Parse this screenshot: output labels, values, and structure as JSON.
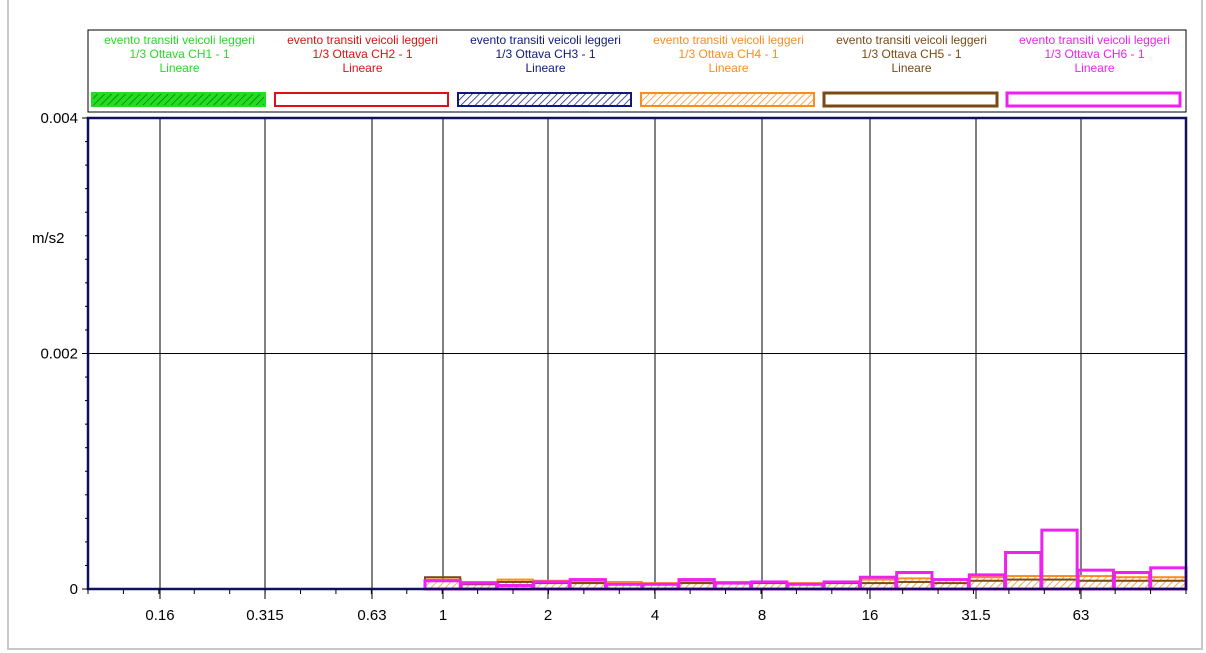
{
  "chart_data": {
    "type": "bar",
    "ylabel": "m/s2",
    "ylim": [
      0,
      0.004
    ],
    "y_ticks": [
      0,
      0.002,
      0.004
    ],
    "y_tick_labels": [
      "0",
      "0.002",
      "0.004"
    ],
    "x_scale": "log",
    "x_tick_labels": [
      "0.16",
      "0.315",
      "0.63",
      "1",
      "2",
      "4",
      "8",
      "16",
      "31.5",
      "63"
    ],
    "grid": true,
    "legend_placement": "top",
    "categories": [
      "1",
      "1.25",
      "1.6",
      "2",
      "2.5",
      "3.15",
      "4",
      "5",
      "6.3",
      "8",
      "10",
      "12.5",
      "16",
      "20",
      "25",
      "31.5",
      "40",
      "50",
      "63",
      "80",
      "100"
    ],
    "series": [
      {
        "name": "evento transiti veicoli leggeri",
        "channel": "1/3 Ottava CH1 - 1",
        "weighting": "Lineare",
        "color": "#22dd22",
        "style": "hatch-green",
        "values": [
          2e-05,
          2e-05,
          2e-05,
          2e-05,
          2e-05,
          2e-05,
          2e-05,
          2e-05,
          2e-05,
          2e-05,
          2e-05,
          2e-05,
          2e-05,
          2e-05,
          2e-05,
          3e-05,
          3e-05,
          3e-05,
          3e-05,
          3e-05,
          3e-05
        ]
      },
      {
        "name": "evento transiti veicoli leggeri",
        "channel": "1/3 Ottava CH2 - 1",
        "weighting": "Lineare",
        "color": "#dd1111",
        "style": "outline",
        "values": [
          4e-05,
          4e-05,
          4e-05,
          4e-05,
          4e-05,
          4e-05,
          3e-05,
          3e-05,
          3e-05,
          3e-05,
          3e-05,
          4e-05,
          4e-05,
          5e-05,
          5e-05,
          6e-05,
          7e-05,
          7e-05,
          7e-05,
          6e-05,
          6e-05
        ]
      },
      {
        "name": "evento transiti veicoli leggeri",
        "channel": "1/3 Ottava CH3 - 1",
        "weighting": "Lineare",
        "color": "#101880",
        "style": "hatch-navy",
        "values": [
          6e-05,
          5e-05,
          6e-05,
          6e-05,
          5e-05,
          5e-05,
          4e-05,
          4e-05,
          4e-05,
          4e-05,
          4e-05,
          5e-05,
          6e-05,
          7e-05,
          6e-05,
          8e-05,
          9e-05,
          9e-05,
          9e-05,
          8e-05,
          8e-05
        ]
      },
      {
        "name": "evento transiti veicoli leggeri",
        "channel": "1/3 Ottava CH4 - 1",
        "weighting": "Lineare",
        "color": "#ff8c1a",
        "style": "hatch-orange",
        "values": [
          8e-05,
          6e-05,
          8e-05,
          7e-05,
          6e-05,
          6e-05,
          5e-05,
          6e-05,
          6e-05,
          6e-05,
          5e-05,
          6e-05,
          8e-05,
          9e-05,
          8e-05,
          0.0001,
          0.00011,
          0.00011,
          0.00011,
          0.0001,
          0.0001
        ]
      },
      {
        "name": "evento transiti veicoli leggeri",
        "channel": "1/3 Ottava CH5 - 1",
        "weighting": "Lineare",
        "color": "#7a4a14",
        "style": "outline",
        "values": [
          0.0001,
          4e-05,
          6e-05,
          5e-05,
          5e-05,
          4e-05,
          4e-05,
          5e-05,
          5e-05,
          5e-05,
          4e-05,
          5e-05,
          5e-05,
          6e-05,
          5e-05,
          7e-05,
          8e-05,
          8e-05,
          7e-05,
          7e-05,
          7e-05
        ]
      },
      {
        "name": "evento transiti veicoli leggeri",
        "channel": "1/3 Ottava CH6 - 1",
        "weighting": "Lineare",
        "color": "#ee22ee",
        "style": "outline",
        "values": [
          7e-05,
          5e-05,
          3e-05,
          6e-05,
          8e-05,
          4e-05,
          4e-05,
          8e-05,
          5e-05,
          6e-05,
          4e-05,
          6e-05,
          0.0001,
          0.00014,
          8e-05,
          0.00012,
          0.00031,
          0.0005,
          0.00016,
          0.00014,
          0.00018
        ]
      }
    ]
  }
}
